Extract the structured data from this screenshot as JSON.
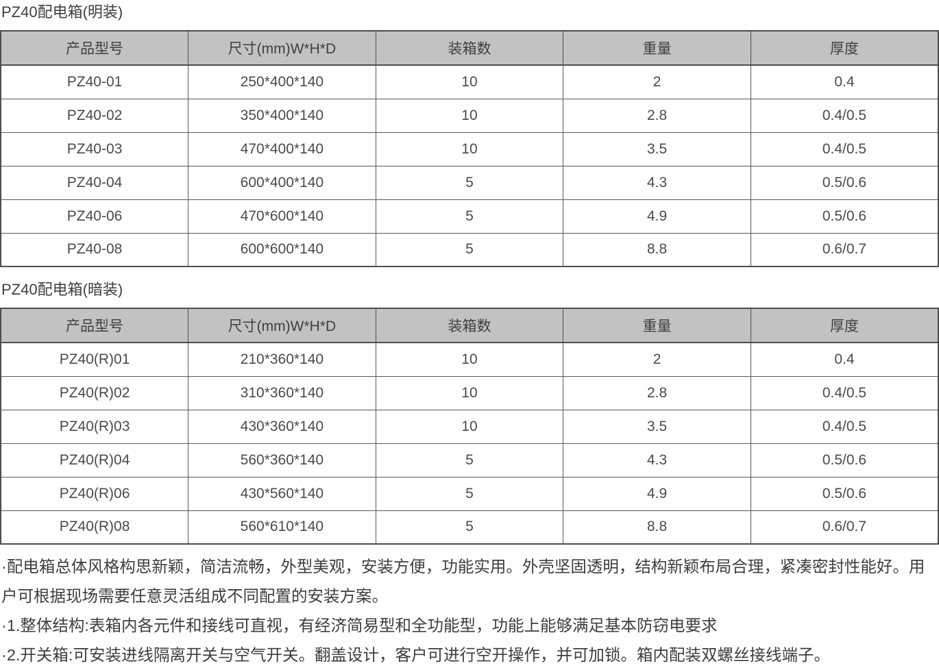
{
  "tables": [
    {
      "title": "PZ40配电箱(明装)",
      "headers": [
        "产品型号",
        "尺寸(mm)W*H*D",
        "装箱数",
        "重量",
        "厚度"
      ],
      "rows": [
        [
          "PZ40-01",
          "250*400*140",
          "10",
          "2",
          "0.4"
        ],
        [
          "PZ40-02",
          "350*400*140",
          "10",
          "2.8",
          "0.4/0.5"
        ],
        [
          "PZ40-03",
          "470*400*140",
          "10",
          "3.5",
          "0.4/0.5"
        ],
        [
          "PZ40-04",
          "600*400*140",
          "5",
          "4.3",
          "0.5/0.6"
        ],
        [
          "PZ40-06",
          "470*600*140",
          "5",
          "4.9",
          "0.5/0.6"
        ],
        [
          "PZ40-08",
          "600*600*140",
          "5",
          "8.8",
          "0.6/0.7"
        ]
      ]
    },
    {
      "title": "PZ40配电箱(暗装)",
      "headers": [
        "产品型号",
        "尺寸(mm)W*H*D",
        "装箱数",
        "重量",
        "厚度"
      ],
      "rows": [
        [
          "PZ40(R)01",
          "210*360*140",
          "10",
          "2",
          "0.4"
        ],
        [
          "PZ40(R)02",
          "310*360*140",
          "10",
          "2.8",
          "0.4/0.5"
        ],
        [
          "PZ40(R)03",
          "430*360*140",
          "10",
          "3.5",
          "0.4/0.5"
        ],
        [
          "PZ40(R)04",
          "560*360*140",
          "5",
          "4.3",
          "0.5/0.6"
        ],
        [
          "PZ40(R)06",
          "430*560*140",
          "5",
          "4.9",
          "0.5/0.6"
        ],
        [
          "PZ40(R)08",
          "560*610*140",
          "5",
          "8.8",
          "0.6/0.7"
        ]
      ]
    }
  ],
  "notes": [
    "·配电箱总体风格构思新颖，简洁流畅，外型美观，安装方便，功能实用。外壳坚固透明，结构新颖布局合理，紧凑密封性能好。用户可根据现场需要任意灵活组成不同配置的安装方案。",
    "·1.整体结构:表箱内各元件和接线可直视，有经济简易型和全功能型，功能上能够满足基本防窃电要求",
    "·2.开关箱:可安装进线隔离开关与空气开关。翻盖设计，客户可进行空开操作，并可加锁。箱内配装双螺丝接线端子。"
  ],
  "colors": {
    "header_bg": "#c2c2c2",
    "border": "#4d4d4d",
    "text": "#3f3f3f"
  }
}
